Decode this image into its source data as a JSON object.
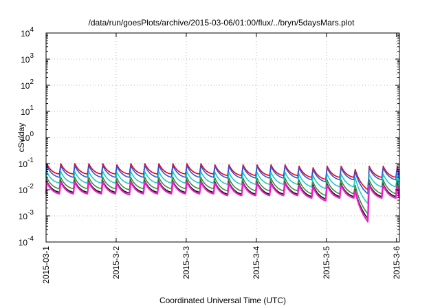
{
  "chart_data": {
    "type": "line",
    "title": "/data/run/goesPlots/archive/2015-03-06/01:00/flux/../bryn/5daysMars.plot",
    "xlabel": "Coordinated Universal Time (UTC)",
    "ylabel": "cSv/day",
    "yscale": "log",
    "ylim": [
      0.0001,
      10000
    ],
    "xlim": [
      "2015-03-01",
      "2015-03-06 01:00"
    ],
    "grid": true,
    "x_ticks": [
      "2015-03-1",
      "2015-3-2",
      "2015-3-3",
      "2015-3-4",
      "2015-3-5",
      "2015-3-6"
    ],
    "y_ticks": [
      {
        "value": 0.0001,
        "base": "10",
        "exp": "-4"
      },
      {
        "value": 0.001,
        "base": "10",
        "exp": "-3"
      },
      {
        "value": 0.01,
        "base": "10",
        "exp": "-2"
      },
      {
        "value": 0.1,
        "base": "10",
        "exp": "-1"
      },
      {
        "value": 1,
        "base": "10",
        "exp": "0"
      },
      {
        "value": 10,
        "base": "10",
        "exp": "1"
      },
      {
        "value": 100,
        "base": "10",
        "exp": "2"
      },
      {
        "value": 1000,
        "base": "10",
        "exp": "3"
      },
      {
        "value": 10000,
        "base": "10",
        "exp": "4"
      }
    ],
    "sawtooth": {
      "period_days": 0.2,
      "days": [
        0,
        0.2,
        0.4,
        0.6,
        0.8,
        1.0,
        1.2,
        1.4,
        1.6,
        1.8,
        2.0,
        2.2,
        2.4,
        2.6,
        2.8,
        3.0,
        3.2,
        3.4,
        3.6,
        3.8,
        4.0,
        4.2,
        4.4,
        4.6,
        4.8,
        5.0
      ],
      "notes": "peak at start of each cycle, decays before next"
    },
    "series": [
      {
        "color": "#e8001c",
        "peaks": [
          0.1,
          0.1,
          0.1,
          0.1,
          0.1,
          0.09,
          0.1,
          0.1,
          0.1,
          0.1,
          0.1,
          0.1,
          0.09,
          0.09,
          0.09,
          0.09,
          0.09,
          0.09,
          0.08,
          0.07,
          0.08,
          0.08,
          0.06,
          0.08,
          0.08,
          0.08
        ],
        "troughs": [
          0.04,
          0.04,
          0.04,
          0.04,
          0.04,
          0.04,
          0.04,
          0.04,
          0.04,
          0.04,
          0.04,
          0.04,
          0.035,
          0.035,
          0.035,
          0.035,
          0.035,
          0.035,
          0.03,
          0.025,
          0.03,
          0.03,
          0.01,
          0.03,
          0.03,
          0.03
        ]
      },
      {
        "color": "#2b54e3",
        "peaks": [
          0.085,
          0.085,
          0.085,
          0.085,
          0.085,
          0.08,
          0.085,
          0.085,
          0.085,
          0.085,
          0.085,
          0.085,
          0.08,
          0.08,
          0.08,
          0.08,
          0.08,
          0.08,
          0.07,
          0.06,
          0.07,
          0.07,
          0.05,
          0.07,
          0.07,
          0.07
        ],
        "troughs": [
          0.03,
          0.03,
          0.03,
          0.03,
          0.03,
          0.03,
          0.03,
          0.03,
          0.03,
          0.03,
          0.03,
          0.03,
          0.028,
          0.028,
          0.028,
          0.028,
          0.028,
          0.028,
          0.024,
          0.02,
          0.024,
          0.024,
          0.007,
          0.024,
          0.024,
          0.024
        ]
      },
      {
        "color": "#1ec8c8",
        "peaks": [
          0.05,
          0.05,
          0.05,
          0.05,
          0.05,
          0.048,
          0.05,
          0.05,
          0.05,
          0.05,
          0.05,
          0.05,
          0.047,
          0.047,
          0.047,
          0.047,
          0.047,
          0.047,
          0.04,
          0.035,
          0.04,
          0.04,
          0.03,
          0.04,
          0.04,
          0.04
        ],
        "troughs": [
          0.018,
          0.018,
          0.018,
          0.018,
          0.018,
          0.017,
          0.018,
          0.018,
          0.018,
          0.018,
          0.018,
          0.018,
          0.016,
          0.016,
          0.016,
          0.016,
          0.016,
          0.016,
          0.013,
          0.011,
          0.013,
          0.013,
          0.003,
          0.013,
          0.013,
          0.013
        ]
      },
      {
        "color": "#3a8a3a",
        "peaks": [
          0.03,
          0.03,
          0.03,
          0.03,
          0.03,
          0.028,
          0.03,
          0.03,
          0.03,
          0.03,
          0.03,
          0.03,
          0.028,
          0.028,
          0.028,
          0.028,
          0.028,
          0.028,
          0.024,
          0.02,
          0.024,
          0.024,
          0.015,
          0.024,
          0.024,
          0.024
        ],
        "troughs": [
          0.011,
          0.011,
          0.011,
          0.011,
          0.011,
          0.01,
          0.011,
          0.011,
          0.011,
          0.011,
          0.011,
          0.011,
          0.009,
          0.009,
          0.009,
          0.009,
          0.009,
          0.009,
          0.007,
          0.006,
          0.007,
          0.007,
          0.0012,
          0.007,
          0.007,
          0.007
        ]
      },
      {
        "color": "#111111",
        "peaks": [
          0.022,
          0.022,
          0.022,
          0.022,
          0.022,
          0.02,
          0.022,
          0.022,
          0.022,
          0.022,
          0.022,
          0.022,
          0.02,
          0.02,
          0.02,
          0.02,
          0.02,
          0.02,
          0.017,
          0.015,
          0.017,
          0.017,
          0.01,
          0.017,
          0.017,
          0.017
        ],
        "troughs": [
          0.008,
          0.008,
          0.008,
          0.008,
          0.008,
          0.0075,
          0.008,
          0.008,
          0.008,
          0.008,
          0.008,
          0.008,
          0.0068,
          0.0068,
          0.0068,
          0.0068,
          0.0068,
          0.0068,
          0.0055,
          0.0045,
          0.0055,
          0.0055,
          0.0008,
          0.0055,
          0.0055,
          0.0055
        ]
      },
      {
        "color": "#ee1ecb",
        "peaks": [
          0.02,
          0.02,
          0.02,
          0.02,
          0.02,
          0.018,
          0.02,
          0.02,
          0.02,
          0.02,
          0.02,
          0.02,
          0.018,
          0.018,
          0.018,
          0.018,
          0.018,
          0.018,
          0.015,
          0.013,
          0.015,
          0.015,
          0.009,
          0.015,
          0.015,
          0.015
        ],
        "troughs": [
          0.007,
          0.007,
          0.007,
          0.007,
          0.007,
          0.0065,
          0.007,
          0.007,
          0.007,
          0.007,
          0.007,
          0.007,
          0.006,
          0.006,
          0.006,
          0.006,
          0.006,
          0.006,
          0.0048,
          0.0038,
          0.0048,
          0.0048,
          0.0006,
          0.0048,
          0.0048,
          0.0048
        ]
      }
    ]
  }
}
